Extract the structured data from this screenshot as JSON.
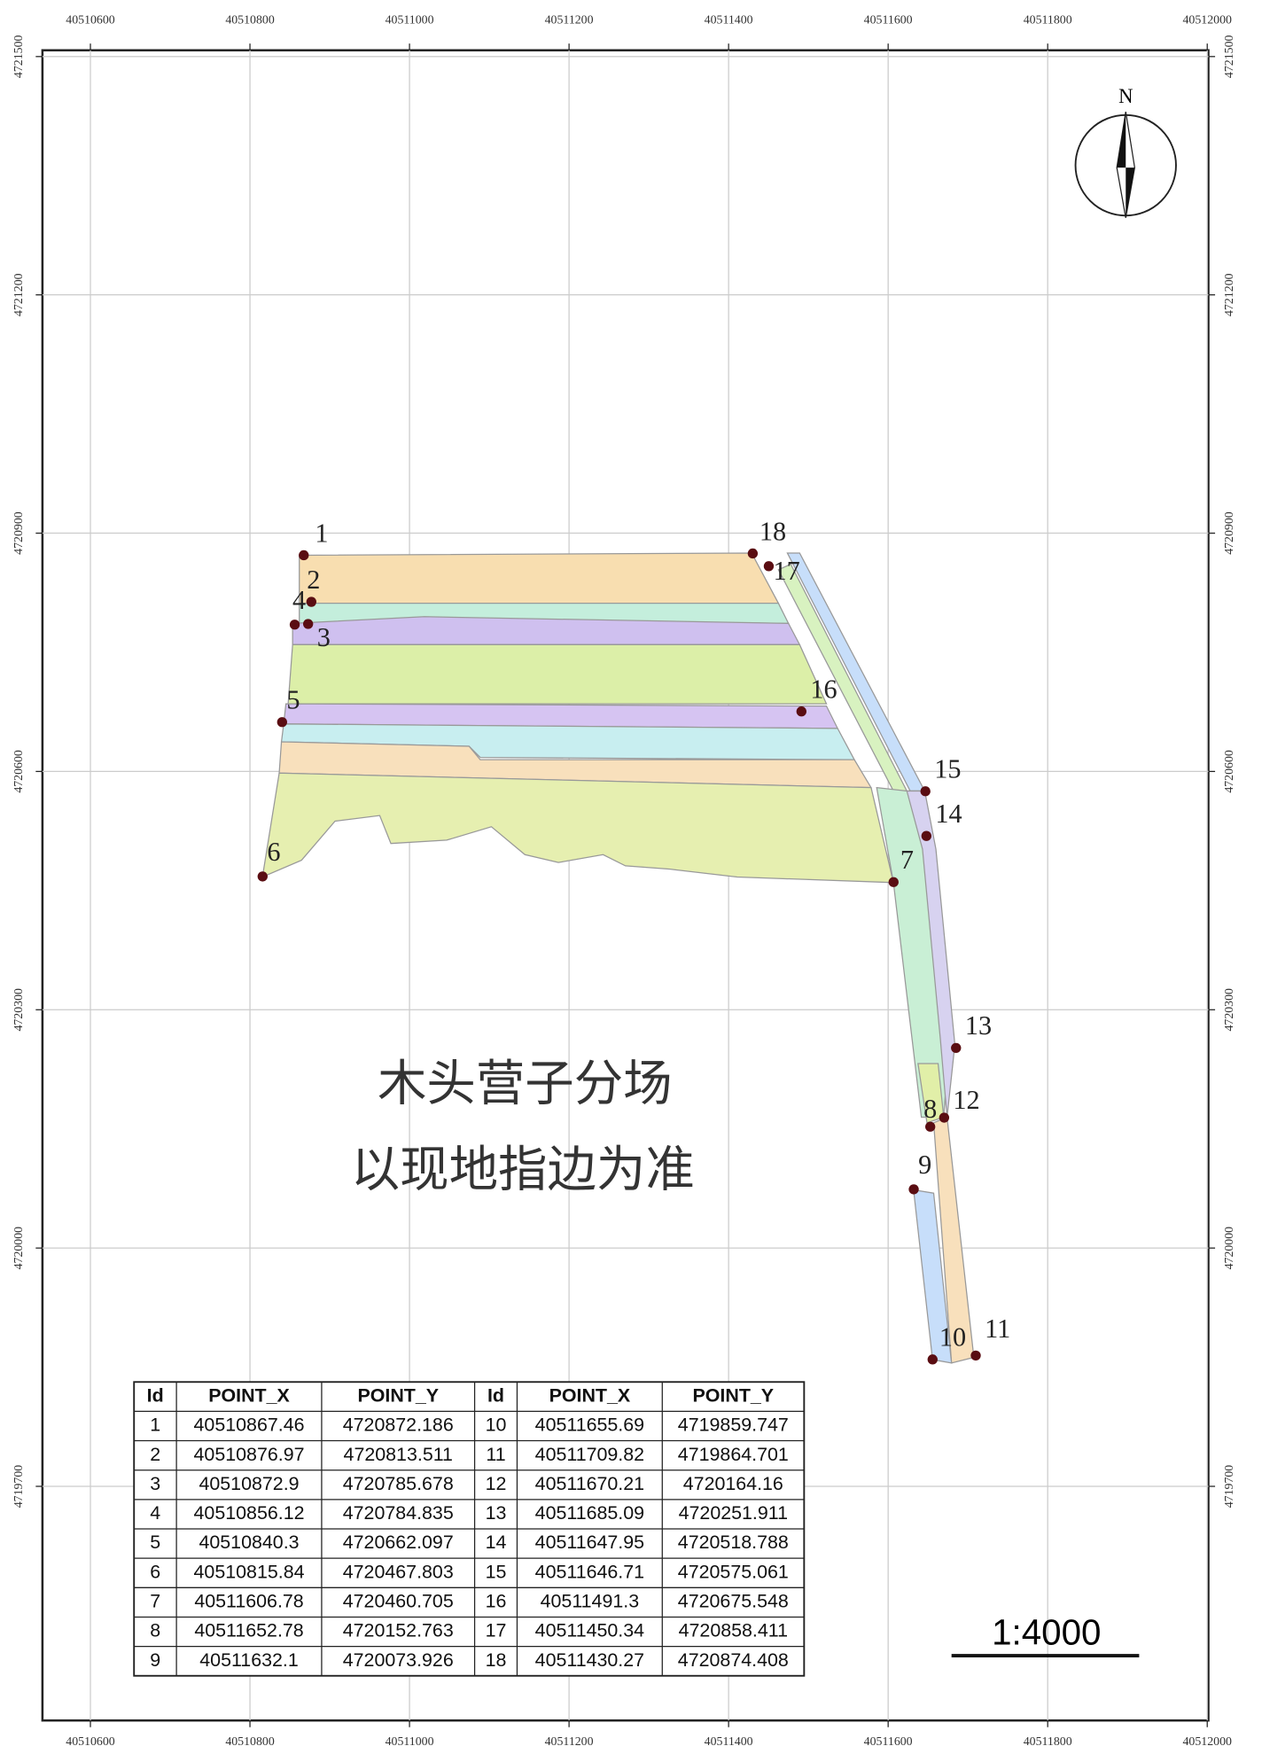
{
  "map": {
    "x_ticks": [
      40510600,
      40510800,
      40511000,
      40511200,
      40511400,
      40511600,
      40511800,
      40512000
    ],
    "y_ticks": [
      4721500,
      4721200,
      4720900,
      4720600,
      4720300,
      4720000,
      4719700
    ],
    "north": "N",
    "labels": [
      "木头营子分场",
      "以现地指边为准"
    ],
    "scale": "1:4000"
  },
  "table": {
    "header": [
      "Id",
      "POINT_X",
      "POINT_Y",
      "Id",
      "POINT_X",
      "POINT_Y"
    ],
    "rows": [
      [
        1,
        40510867.46,
        4720872.186,
        10,
        40511655.69,
        4719859.747
      ],
      [
        2,
        40510876.97,
        4720813.511,
        11,
        40511709.82,
        4719864.701
      ],
      [
        3,
        40510872.9,
        4720785.678,
        12,
        40511670.21,
        4720164.16
      ],
      [
        4,
        40510856.12,
        4720784.835,
        13,
        40511685.09,
        4720251.911
      ],
      [
        5,
        40510840.3,
        4720662.097,
        14,
        40511647.95,
        4720518.788
      ],
      [
        6,
        40510815.84,
        4720467.803,
        15,
        40511646.71,
        4720575.061
      ],
      [
        7,
        40511606.78,
        4720460.705,
        16,
        40511491.3,
        4720675.548
      ],
      [
        8,
        40511652.78,
        4720152.763,
        17,
        40511450.34,
        4720858.411
      ],
      [
        9,
        40511632.1,
        4720073.926,
        18,
        40511430.27,
        4720874.408
      ]
    ]
  }
}
